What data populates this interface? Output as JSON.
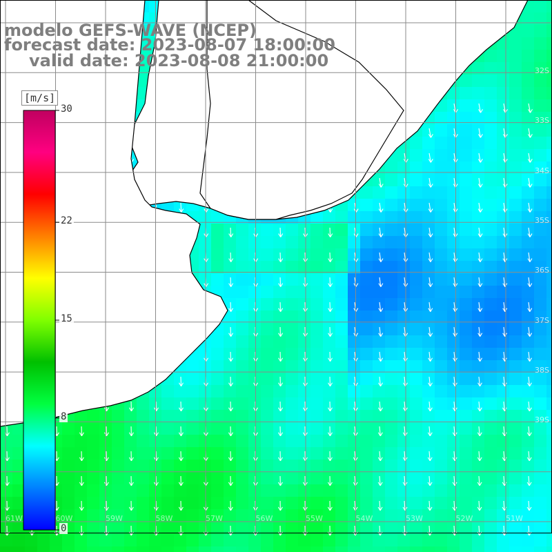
{
  "title": {
    "line1": "modelo GEFS-WAVE (NCEP)",
    "line2": "forecast date: 2023-08-07 18:00:00",
    "line3": "valid date: 2023-08-08 21:00:00"
  },
  "colorbar": {
    "unit": "[m/s]",
    "ticks": [
      "30",
      "22",
      "15",
      "8",
      "0"
    ],
    "tick_values": [
      30,
      22,
      15,
      8,
      0
    ],
    "min": 0,
    "max": 30,
    "colors": [
      "#0000ff",
      "#0080ff",
      "#00ffff",
      "#00ff40",
      "#00c000",
      "#80ff00",
      "#ffff00",
      "#ff8000",
      "#ff0000",
      "#ff0080",
      "#c00060"
    ]
  },
  "lat_labels": [
    "32S",
    "33S",
    "34S",
    "35S",
    "36S",
    "37S",
    "38S",
    "39S"
  ],
  "lon_labels": [
    "61W",
    "60W",
    "59W",
    "58W",
    "57W",
    "56W",
    "55W",
    "54W",
    "53W",
    "52W",
    "51W",
    "50W"
  ],
  "grid": {
    "lon_lines": 11,
    "lat_lines": 11
  },
  "colors": {
    "land": "#ffffff",
    "coast": "#000000",
    "grid": "#8a8a8a",
    "arrow": "#ffffff",
    "title": "#7f7f7f"
  },
  "field_summary": {
    "variable": "wind speed",
    "flow_direction": "south-westerly to southward",
    "range_m_s": [
      4,
      10
    ]
  }
}
